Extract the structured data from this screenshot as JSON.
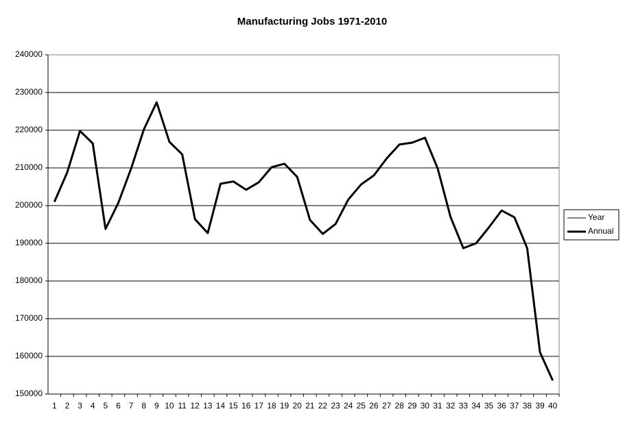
{
  "chart_data": {
    "type": "line",
    "title": "Manufacturing Jobs 1971-2010",
    "categories": [
      1,
      2,
      3,
      4,
      5,
      6,
      7,
      8,
      9,
      10,
      11,
      12,
      13,
      14,
      15,
      16,
      17,
      18,
      19,
      20,
      21,
      22,
      23,
      24,
      25,
      26,
      27,
      28,
      29,
      30,
      31,
      32,
      33,
      34,
      35,
      36,
      37,
      38,
      39,
      40
    ],
    "series": [
      {
        "name": "Year",
        "color": "#000000",
        "width": 1,
        "values": [
          null,
          null,
          null,
          null,
          null,
          null,
          null,
          null,
          null,
          null,
          null,
          null,
          null,
          null,
          null,
          null,
          null,
          null,
          null,
          null,
          null,
          null,
          null,
          null,
          null,
          null,
          null,
          null,
          null,
          null,
          null,
          null,
          null,
          null,
          null,
          null,
          null,
          null,
          null,
          null
        ]
      },
      {
        "name": "Annual",
        "color": "#000000",
        "width": 3,
        "values": [
          201000,
          208800,
          219800,
          216500,
          193800,
          200700,
          209800,
          220200,
          227400,
          216900,
          213600,
          196400,
          192700,
          205800,
          206400,
          204200,
          206200,
          210200,
          211100,
          207600,
          196200,
          192500,
          195100,
          201600,
          205600,
          208000,
          212500,
          216200,
          216700,
          218000,
          209800,
          197000,
          188700,
          190000,
          194200,
          198700,
          196900,
          188700,
          161100,
          153600
        ]
      }
    ],
    "ylim": [
      150000,
      240000
    ],
    "yticks": [
      150000,
      160000,
      170000,
      180000,
      190000,
      200000,
      210000,
      220000,
      230000,
      240000
    ],
    "grid": true,
    "legend": "right"
  }
}
